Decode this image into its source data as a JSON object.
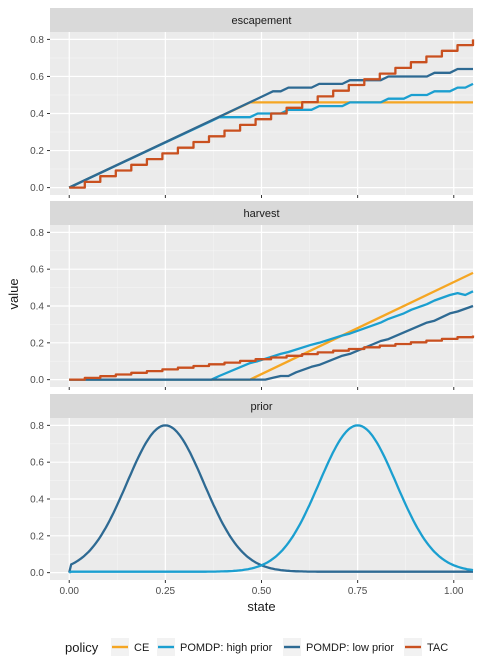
{
  "chart_data": {
    "type": "line",
    "xlabel": "state",
    "ylabel": "value",
    "xlim": [
      -0.05,
      1.05
    ],
    "ylim": [
      -0.04,
      0.84
    ],
    "x_ticks": [
      0.0,
      0.25,
      0.5,
      0.75,
      1.0
    ],
    "x_tick_labels": [
      "0.00",
      "0.25",
      "0.50",
      "0.75",
      "1.00"
    ],
    "y_ticks": [
      0.0,
      0.2,
      0.4,
      0.6,
      0.8
    ],
    "y_tick_labels": [
      "0.0",
      "0.2",
      "0.4",
      "0.6",
      "0.8"
    ],
    "grid": true,
    "legend": {
      "title": "policy",
      "position": "bottom",
      "entries": [
        {
          "label": "CE",
          "color": "#F5A623"
        },
        {
          "label": "POMDP: high prior",
          "color": "#1B9FD0"
        },
        {
          "label": "POMDP: low prior",
          "color": "#2E6A93"
        },
        {
          "label": "TAC",
          "color": "#C9501F"
        }
      ]
    },
    "panels": [
      {
        "title": "escapement",
        "series": [
          {
            "name": "CE",
            "color": "#F5A623",
            "step": false,
            "points": [
              [
                0,
                0
              ],
              [
                0.47,
                0.46
              ],
              [
                1.05,
                0.46
              ]
            ]
          },
          {
            "name": "POMDP: high prior",
            "color": "#1B9FD0",
            "step": true,
            "points": [
              [
                0,
                0
              ],
              [
                0.37,
                0.36
              ],
              [
                0.39,
                0.38
              ],
              [
                0.47,
                0.38
              ],
              [
                0.49,
                0.4
              ],
              [
                0.55,
                0.4
              ],
              [
                0.57,
                0.42
              ],
              [
                0.63,
                0.42
              ],
              [
                0.65,
                0.44
              ],
              [
                0.71,
                0.44
              ],
              [
                0.73,
                0.46
              ],
              [
                0.81,
                0.46
              ],
              [
                0.83,
                0.48
              ],
              [
                0.87,
                0.48
              ],
              [
                0.89,
                0.5
              ],
              [
                0.93,
                0.5
              ],
              [
                0.95,
                0.52
              ],
              [
                0.99,
                0.52
              ],
              [
                1.01,
                0.54
              ],
              [
                1.03,
                0.54
              ],
              [
                1.05,
                0.56
              ]
            ]
          },
          {
            "name": "POMDP: low prior",
            "color": "#2E6A93",
            "step": true,
            "points": [
              [
                0,
                0
              ],
              [
                0.51,
                0.5
              ],
              [
                0.53,
                0.52
              ],
              [
                0.55,
                0.52
              ],
              [
                0.57,
                0.54
              ],
              [
                0.63,
                0.54
              ],
              [
                0.65,
                0.56
              ],
              [
                0.71,
                0.56
              ],
              [
                0.73,
                0.58
              ],
              [
                0.81,
                0.58
              ],
              [
                0.83,
                0.6
              ],
              [
                0.93,
                0.6
              ],
              [
                0.95,
                0.62
              ],
              [
                0.99,
                0.62
              ],
              [
                1.01,
                0.64
              ],
              [
                1.05,
                0.64
              ]
            ]
          },
          {
            "name": "TAC",
            "color": "#C9501F",
            "step": true,
            "points": [
              [
                0,
                0
              ],
              [
                1.05,
                0.8
              ]
            ]
          }
        ]
      },
      {
        "title": "harvest",
        "series": [
          {
            "name": "CE",
            "color": "#F5A623",
            "step": false,
            "points": [
              [
                0,
                0
              ],
              [
                0.47,
                0
              ],
              [
                1.05,
                0.58
              ]
            ]
          },
          {
            "name": "POMDP: high prior",
            "color": "#1B9FD0",
            "step": true,
            "points": [
              [
                0,
                0
              ],
              [
                0.37,
                0
              ],
              [
                0.39,
                0.02
              ],
              [
                0.47,
                0.09
              ],
              [
                0.49,
                0.1
              ],
              [
                0.55,
                0.14
              ],
              [
                0.57,
                0.15
              ],
              [
                0.63,
                0.19
              ],
              [
                0.65,
                0.2
              ],
              [
                0.71,
                0.24
              ],
              [
                0.73,
                0.25
              ],
              [
                0.81,
                0.31
              ],
              [
                0.83,
                0.33
              ],
              [
                0.87,
                0.36
              ],
              [
                0.89,
                0.38
              ],
              [
                0.93,
                0.41
              ],
              [
                0.95,
                0.43
              ],
              [
                0.99,
                0.46
              ],
              [
                1.01,
                0.47
              ],
              [
                1.03,
                0.46
              ],
              [
                1.05,
                0.48
              ]
            ]
          },
          {
            "name": "POMDP: low prior",
            "color": "#2E6A93",
            "step": true,
            "points": [
              [
                0,
                0
              ],
              [
                0.51,
                0
              ],
              [
                0.53,
                0.01
              ],
              [
                0.55,
                0.02
              ],
              [
                0.57,
                0.02
              ],
              [
                0.59,
                0.04
              ],
              [
                0.63,
                0.07
              ],
              [
                0.65,
                0.08
              ],
              [
                0.71,
                0.13
              ],
              [
                0.73,
                0.14
              ],
              [
                0.81,
                0.21
              ],
              [
                0.83,
                0.22
              ],
              [
                0.93,
                0.31
              ],
              [
                0.95,
                0.32
              ],
              [
                0.99,
                0.36
              ],
              [
                1.01,
                0.37
              ],
              [
                1.05,
                0.4
              ]
            ]
          },
          {
            "name": "TAC",
            "color": "#C9501F",
            "step": true,
            "points": [
              [
                0,
                0
              ],
              [
                1.05,
                0.24
              ]
            ]
          }
        ]
      },
      {
        "title": "prior",
        "series": [
          {
            "name": "POMDP: low prior",
            "color": "#2E6A93",
            "step": false,
            "gaussian": {
              "mean": 0.25,
              "sd": 0.1,
              "peak": 0.8,
              "floor": 0.005
            }
          },
          {
            "name": "POMDP: high prior",
            "color": "#1B9FD0",
            "step": false,
            "gaussian": {
              "mean": 0.75,
              "sd": 0.1,
              "peak": 0.8,
              "floor": 0.005
            }
          }
        ]
      }
    ]
  }
}
